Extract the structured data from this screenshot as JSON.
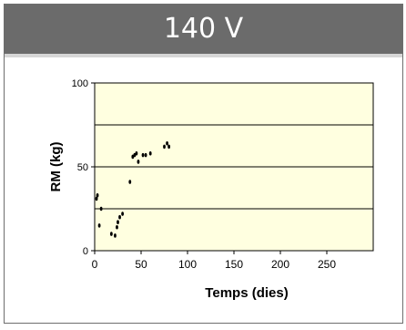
{
  "header": {
    "title": "140 V"
  },
  "chart_data": {
    "type": "scatter",
    "title": "",
    "xlabel": "Temps (dies)",
    "ylabel": "RM (kg)",
    "xlim": [
      0,
      300
    ],
    "ylim": [
      0,
      100
    ],
    "x_ticks": [
      "0",
      "50",
      "100",
      "150",
      "200",
      "250"
    ],
    "y_ticks": [
      "0",
      "50",
      "100"
    ],
    "grid_y": [
      25,
      50,
      75
    ],
    "plot_background": "#ffffe0",
    "point_color": "#000000",
    "series": [
      {
        "values": [
          {
            "x": 2,
            "y": 31
          },
          {
            "x": 3,
            "y": 33
          },
          {
            "x": 5,
            "y": 15
          },
          {
            "x": 7,
            "y": 25
          },
          {
            "x": 18,
            "y": 10
          },
          {
            "x": 22,
            "y": 9
          },
          {
            "x": 24,
            "y": 14
          },
          {
            "x": 25,
            "y": 17
          },
          {
            "x": 27,
            "y": 20
          },
          {
            "x": 30,
            "y": 22
          },
          {
            "x": 38,
            "y": 41
          },
          {
            "x": 41,
            "y": 56
          },
          {
            "x": 43,
            "y": 57
          },
          {
            "x": 45,
            "y": 58
          },
          {
            "x": 47,
            "y": 53
          },
          {
            "x": 52,
            "y": 57
          },
          {
            "x": 55,
            "y": 57
          },
          {
            "x": 60,
            "y": 58
          },
          {
            "x": 75,
            "y": 62
          },
          {
            "x": 78,
            "y": 64
          },
          {
            "x": 80,
            "y": 62
          }
        ]
      }
    ]
  }
}
